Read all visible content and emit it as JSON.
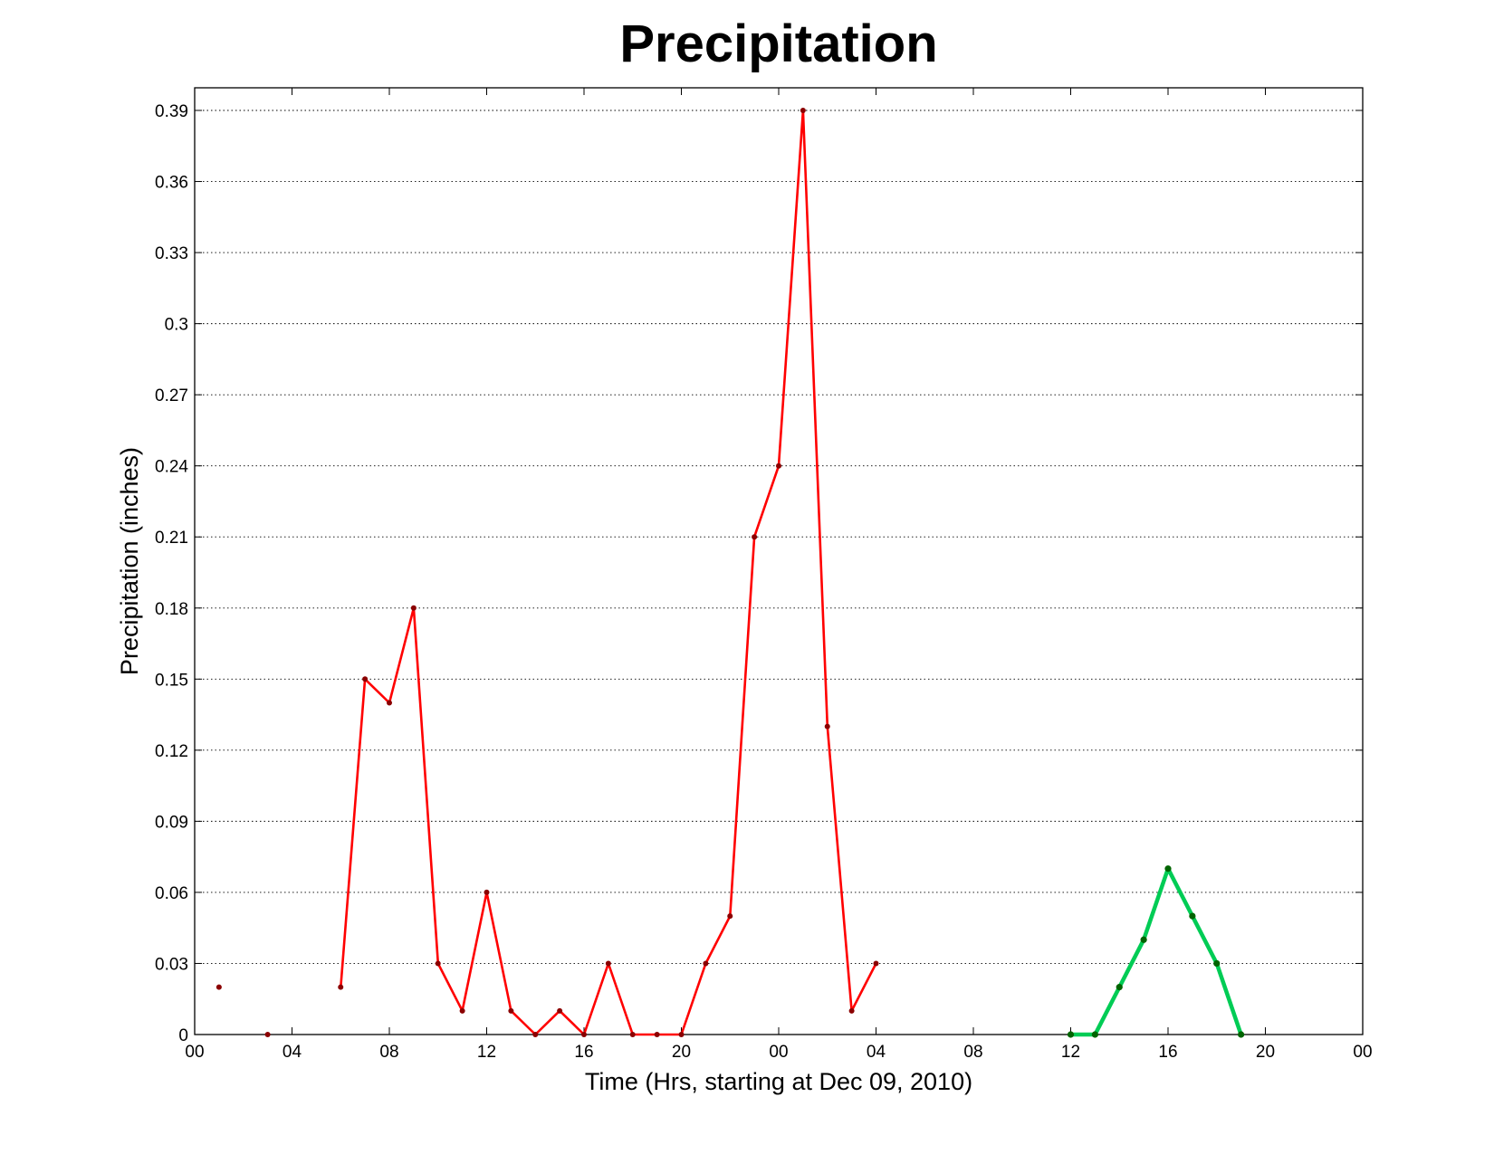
{
  "chart_data": {
    "type": "line",
    "title": "Precipitation",
    "xlabel": "Time (Hrs, starting at Dec 09, 2010)",
    "ylabel": "Precipitation (inches)",
    "ylim": [
      0,
      0.39
    ],
    "xlim": [
      "2010-12-09 00:00",
      "2010-12-11 00:00"
    ],
    "x_tick_labels": [
      "00",
      "04",
      "08",
      "12",
      "16",
      "20",
      "00",
      "04",
      "08",
      "12",
      "16",
      "20",
      "00"
    ],
    "y_tick_labels": [
      "0",
      "0.03",
      "0.06",
      "0.09",
      "0.12",
      "0.15",
      "0.18",
      "0.21",
      "0.24",
      "0.27",
      "0.3",
      "0.33",
      "0.36",
      "0.39"
    ],
    "y_ticks": [
      0,
      0.03,
      0.06,
      0.09,
      0.12,
      0.15,
      0.18,
      0.21,
      0.24,
      0.27,
      0.3,
      0.33,
      0.36,
      0.39
    ],
    "grid": "y-dotted",
    "series": [
      {
        "color": "#ff0000",
        "marker_color": "#8b0000",
        "points": [
          {
            "x": "2010-12-09 01:00",
            "y": 0.02
          },
          {
            "x": "2010-12-09 03:00",
            "y": 0
          },
          {
            "x": "2010-12-09 06:00",
            "y": 0.02
          },
          {
            "x": "2010-12-09 07:00",
            "y": 0.15
          },
          {
            "x": "2010-12-09 08:00",
            "y": 0.14
          },
          {
            "x": "2010-12-09 09:00",
            "y": 0.18
          },
          {
            "x": "2010-12-09 10:00",
            "y": 0.03
          },
          {
            "x": "2010-12-09 11:00",
            "y": 0.01
          },
          {
            "x": "2010-12-09 12:00",
            "y": 0.06
          },
          {
            "x": "2010-12-09 13:00",
            "y": 0.01
          },
          {
            "x": "2010-12-09 14:00",
            "y": 0
          },
          {
            "x": "2010-12-09 15:00",
            "y": 0.01
          },
          {
            "x": "2010-12-09 16:00",
            "y": 0
          },
          {
            "x": "2010-12-09 17:00",
            "y": 0.03
          },
          {
            "x": "2010-12-09 18:00",
            "y": 0
          },
          {
            "x": "2010-12-09 19:00",
            "y": 0
          },
          {
            "x": "2010-12-09 20:00",
            "y": 0
          },
          {
            "x": "2010-12-09 21:00",
            "y": 0.03
          },
          {
            "x": "2010-12-09 22:00",
            "y": 0.05
          },
          {
            "x": "2010-12-09 23:00",
            "y": 0.21
          },
          {
            "x": "2010-12-10 00:00",
            "y": 0.24
          },
          {
            "x": "2010-12-10 01:00",
            "y": 0.39
          },
          {
            "x": "2010-12-10 02:00",
            "y": 0.13
          },
          {
            "x": "2010-12-10 03:00",
            "y": 0.01
          },
          {
            "x": "2010-12-10 04:00",
            "y": 0.03
          }
        ]
      },
      {
        "color": "#00cc55",
        "marker_color": "#006400",
        "points": [
          {
            "x": "2010-12-10 12:00",
            "y": 0
          },
          {
            "x": "2010-12-10 13:00",
            "y": 0
          },
          {
            "x": "2010-12-10 14:00",
            "y": 0.02
          },
          {
            "x": "2010-12-10 15:00",
            "y": 0.04
          },
          {
            "x": "2010-12-10 16:00",
            "y": 0.07
          },
          {
            "x": "2010-12-10 17:00",
            "y": 0.05
          },
          {
            "x": "2010-12-10 18:00",
            "y": 0.03
          },
          {
            "x": "2010-12-10 19:00",
            "y": 0
          }
        ]
      }
    ]
  }
}
